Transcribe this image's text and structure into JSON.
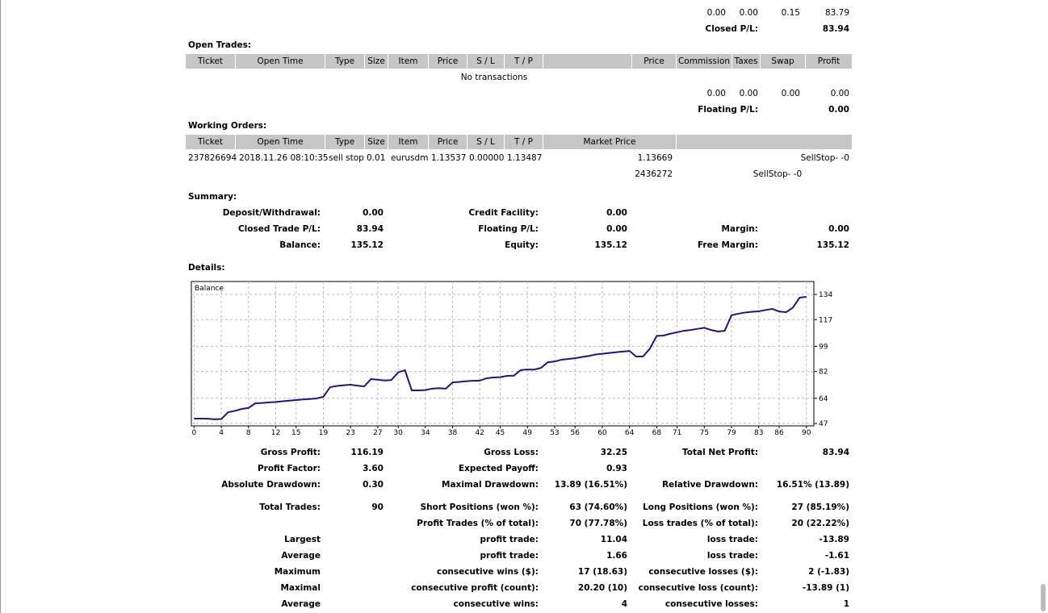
{
  "top_totals": {
    "values": [
      "0.00",
      "0.00",
      "0.15",
      "83.79"
    ],
    "label": "Closed P/L:",
    "value": "83.94"
  },
  "open_trades": {
    "title": "Open Trades:",
    "headers": [
      "Ticket",
      "Open Time",
      "Type",
      "Size",
      "Item",
      "Price",
      "S / L",
      "T / P",
      null,
      "Price",
      "Commission",
      "Taxes",
      "Swap",
      "Profit"
    ],
    "empty": "No transactions",
    "totals": [
      "0.00",
      "0.00",
      "0.00",
      "0.00"
    ],
    "total_label": "Floating P/L:",
    "total_value": "0.00"
  },
  "working_orders": {
    "title": "Working Orders:",
    "headers": [
      "Ticket",
      "Open Time",
      "Type",
      "Size",
      "Item",
      "Price",
      "S / L",
      "T / P",
      "Market Price",
      null
    ],
    "rows": [
      [
        "237826694",
        "2018.11.26 08:10:35",
        "sell stop",
        "0.01",
        "eurusdm",
        "1.13537",
        "0.00000",
        "1.13487",
        "1.13669",
        "SellStop- -0"
      ]
    ],
    "comment_row": {
      "id": "2436272",
      "comment": "SellStop- -0"
    }
  },
  "summary": {
    "title": "Summary:",
    "rows": [
      [
        "Deposit/Withdrawal:",
        "0.00",
        "Credit Facility:",
        "0.00",
        null,
        null
      ],
      [
        "Closed Trade P/L:",
        "83.94",
        "Floating P/L:",
        "0.00",
        "Margin:",
        "0.00"
      ],
      [
        "Balance:",
        "135.12",
        "Equity:",
        "135.12",
        "Free Margin:",
        "135.12"
      ]
    ]
  },
  "details": {
    "title": "Details:",
    "chart": {
      "type": "line",
      "legend": "Balance",
      "color": "#1f1488",
      "x": [
        0,
        1,
        2,
        3,
        4,
        5,
        6,
        7,
        8,
        9,
        10,
        11,
        12,
        13,
        14,
        15,
        16,
        17,
        18,
        19,
        20,
        21,
        22,
        23,
        24,
        25,
        26,
        27,
        28,
        29,
        30,
        31,
        32,
        33,
        34,
        35,
        36,
        37,
        38,
        39,
        40,
        41,
        42,
        43,
        44,
        45,
        46,
        47,
        48,
        49,
        50,
        51,
        52,
        53,
        54,
        55,
        56,
        57,
        58,
        59,
        60,
        61,
        62,
        63,
        64,
        65,
        66,
        67,
        68,
        69,
        70,
        71,
        72,
        73,
        74,
        75,
        76,
        77,
        78,
        79,
        80,
        81,
        82,
        83,
        84,
        85,
        86,
        87,
        88,
        89,
        90
      ],
      "values": [
        50.3,
        50.3,
        50.2,
        49.8,
        50,
        54.6,
        55.5,
        56.8,
        57.5,
        60.6,
        60.8,
        61.2,
        61.5,
        62,
        62.4,
        62.8,
        63.2,
        63.5,
        63.9,
        65,
        71.5,
        72.3,
        72.8,
        73.1,
        72.5,
        72,
        76.9,
        76.5,
        76,
        76.3,
        81.5,
        82.9,
        69.3,
        69.3,
        69.5,
        70.5,
        70.8,
        70.5,
        74.7,
        75,
        75.5,
        75.8,
        75.9,
        77.5,
        78,
        78.2,
        79.1,
        79.2,
        83,
        83.4,
        83.3,
        84.5,
        88.3,
        88.8,
        90,
        90.5,
        91,
        91.8,
        92.5,
        93.5,
        94,
        94.5,
        95,
        95.5,
        95.9,
        92.1,
        92.2,
        97.5,
        106,
        106.3,
        107.5,
        108.5,
        109.5,
        110,
        110.8,
        111.5,
        110,
        109,
        109.5,
        120,
        121,
        121.8,
        122.3,
        122.6,
        123.5,
        124.2,
        122.5,
        122,
        125,
        131.8,
        132.4
      ],
      "xlim": [
        -0.4,
        91.1
      ],
      "ylim": [
        45.4,
        142.7
      ],
      "xticks": [
        0,
        4,
        8,
        12,
        15,
        19,
        23,
        27,
        30,
        34,
        38,
        42,
        45,
        49,
        53,
        56,
        60,
        64,
        68,
        71,
        75,
        79,
        83,
        86,
        90
      ],
      "yticks": [
        134,
        117,
        99,
        82,
        64,
        47
      ],
      "grid": true
    },
    "stats": [
      [
        "Gross Profit:",
        "116.19",
        "Gross Loss:",
        "32.25",
        "Total Net Profit:",
        "83.94"
      ],
      [
        "Profit Factor:",
        "3.60",
        "Expected Payoff:",
        "0.93",
        null,
        null
      ],
      [
        "Absolute Drawdown:",
        "0.30",
        "Maximal Drawdown:",
        "13.89 (16.51%)",
        "Relative Drawdown:",
        "16.51% (13.89)"
      ],
      [
        "Total Trades:",
        "90",
        "Short Positions (won %):",
        "63 (74.60%)",
        "Long Positions (won %):",
        "27 (85.19%)"
      ],
      [
        null,
        null,
        "Profit Trades (% of total):",
        "70 (77.78%)",
        "Loss trades (% of total):",
        "20 (22.22%)"
      ],
      [
        "Largest",
        null,
        "profit trade:",
        "11.04",
        "loss trade:",
        "-13.89"
      ],
      [
        "Average",
        null,
        "profit trade:",
        "1.66",
        "loss trade:",
        "-1.61"
      ],
      [
        "Maximum",
        null,
        "consecutive wins ($):",
        "17 (18.63)",
        "consecutive losses ($):",
        "2 (-1.83)"
      ],
      [
        "Maximal",
        null,
        "consecutive profit (count):",
        "20.20 (10)",
        "consecutive loss (count):",
        "-13.89 (1)"
      ],
      [
        "Average",
        null,
        "consecutive wins:",
        "4",
        "consecutive losses:",
        "1"
      ]
    ]
  }
}
